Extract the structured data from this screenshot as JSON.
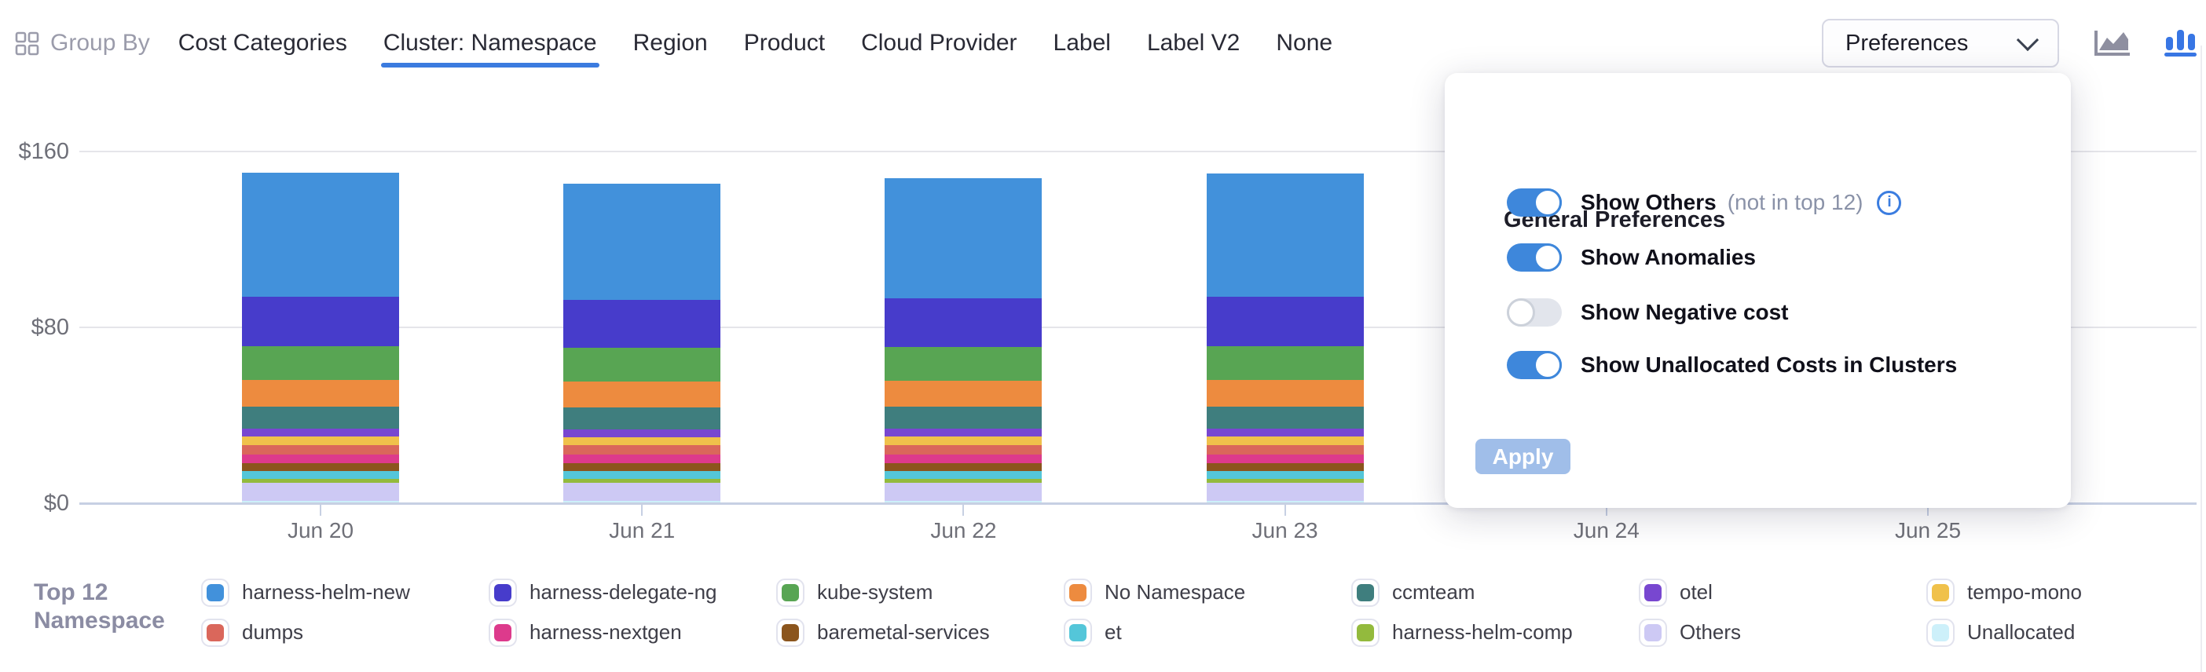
{
  "toolbar": {
    "group_by_label": "Group By",
    "tabs": [
      "Cost Categories",
      "Cluster: Namespace",
      "Region",
      "Product",
      "Cloud Provider",
      "Label",
      "Label V2",
      "None"
    ],
    "active_tab": "Cluster: Namespace",
    "preferences_button": "Preferences",
    "chart_types": [
      "area-chart",
      "bar-chart"
    ],
    "active_chart_type": "bar-chart"
  },
  "preferences": {
    "title": "General Preferences",
    "toggles": [
      {
        "label": "Show Others",
        "suffix": "(not in top 12)",
        "info": true,
        "on": true
      },
      {
        "label": "Show Anomalies",
        "suffix": "",
        "info": false,
        "on": true
      },
      {
        "label": "Show Negative cost",
        "suffix": "",
        "info": false,
        "on": false
      },
      {
        "label": "Show Unallocated Costs in Clusters",
        "suffix": "",
        "info": false,
        "on": true
      }
    ],
    "apply_label": "Apply"
  },
  "legend": {
    "title_lines": [
      "Top 12",
      "Namespace"
    ],
    "column_major_order": [
      0,
      7,
      1,
      8,
      2,
      9,
      3,
      10,
      4,
      11,
      5,
      12,
      6,
      13
    ]
  },
  "chart_data": {
    "type": "bar",
    "stacked": true,
    "title": "",
    "xlabel": "",
    "ylabel": "",
    "currency_prefix": "$",
    "ylim": [
      0,
      160
    ],
    "yticks": [
      {
        "label": "$0",
        "value": 0
      },
      {
        "label": "$80",
        "value": 80
      },
      {
        "label": "$160",
        "value": 160
      }
    ],
    "grid": "horizontal",
    "legend_position": "bottom",
    "categories": [
      "Jun 20",
      "Jun 21",
      "Jun 22",
      "Jun 23",
      "Jun 24",
      "Jun 25"
    ],
    "series": [
      {
        "name": "harness-helm-new",
        "color": "#4291DB",
        "values": [
          56.5,
          53.0,
          54.5,
          56.0,
          null,
          null
        ]
      },
      {
        "name": "harness-delegate-ng",
        "color": "#473CCB",
        "values": [
          22.3,
          21.8,
          22.0,
          22.3,
          null,
          null
        ]
      },
      {
        "name": "kube-system",
        "color": "#58A553",
        "values": [
          15.6,
          15.2,
          15.4,
          15.6,
          null,
          null
        ]
      },
      {
        "name": "No Namespace",
        "color": "#ED8B3F",
        "values": [
          12.0,
          11.8,
          11.9,
          12.0,
          null,
          null
        ]
      },
      {
        "name": "ccmteam",
        "color": "#3F7E7E",
        "values": [
          10.2,
          10.0,
          10.1,
          10.2,
          null,
          null
        ]
      },
      {
        "name": "otel",
        "color": "#7847D0",
        "values": [
          3.6,
          3.6,
          3.6,
          3.6,
          null,
          null
        ]
      },
      {
        "name": "tempo-mono",
        "color": "#F0C14B",
        "values": [
          3.6,
          3.6,
          3.6,
          3.6,
          null,
          null
        ]
      },
      {
        "name": "dumps",
        "color": "#DA675B",
        "values": [
          4.6,
          4.5,
          4.6,
          4.6,
          null,
          null
        ]
      },
      {
        "name": "harness-nextgen",
        "color": "#DD3A8C",
        "values": [
          3.8,
          3.8,
          3.8,
          3.8,
          null,
          null
        ]
      },
      {
        "name": "baremetal-services",
        "color": "#8B551D",
        "values": [
          3.6,
          3.6,
          3.6,
          3.6,
          null,
          null
        ]
      },
      {
        "name": "et",
        "color": "#54C6D9",
        "values": [
          3.4,
          3.4,
          3.4,
          3.4,
          null,
          null
        ]
      },
      {
        "name": "harness-helm-comp",
        "color": "#93BA3D",
        "values": [
          2.0,
          2.0,
          2.0,
          2.0,
          null,
          null
        ]
      },
      {
        "name": "Others",
        "color": "#CDC9F4",
        "values": [
          8.0,
          8.0,
          8.0,
          8.0,
          null,
          null
        ]
      },
      {
        "name": "Unallocated",
        "color": "#CDF0FA",
        "values": [
          1.2,
          1.2,
          1.2,
          1.2,
          null,
          null
        ]
      }
    ]
  },
  "colors": {
    "accent_blue": "#3B7BDF",
    "toggle_on": "#3E87DB",
    "apply_disabled_bg": "#A0BEE9",
    "grid_line": "#E5E5EA",
    "axis_line": "#C7D0E3",
    "axis_text": "#6E6F78",
    "legend_title_text": "#8B8CA3",
    "icon_gray": "#8E8FA0"
  }
}
